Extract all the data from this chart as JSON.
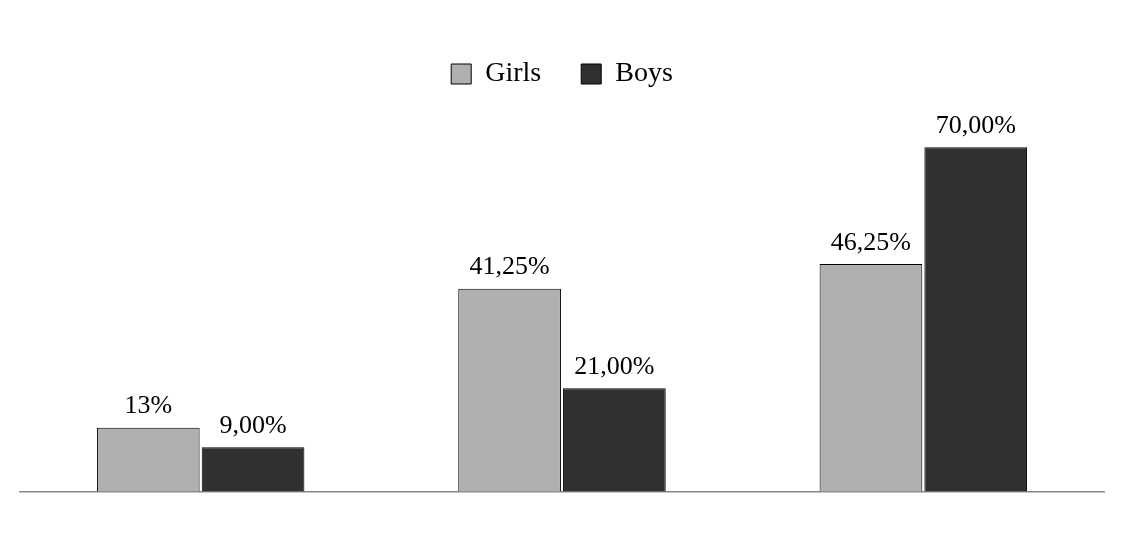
{
  "chart_data": {
    "type": "bar",
    "categories": [
      null,
      null,
      null
    ],
    "series": [
      {
        "name": "Girls",
        "color": "#b0b0b0",
        "values": [
          13,
          41.25,
          46.25
        ],
        "value_labels": [
          "13%",
          "41,25%",
          "46,25%"
        ]
      },
      {
        "name": "Boys",
        "color": "#303030",
        "values": [
          9,
          21,
          70
        ],
        "value_labels": [
          "9,00%",
          "21,00%",
          "70,00%"
        ]
      }
    ],
    "legend": "top",
    "grid": false
  }
}
